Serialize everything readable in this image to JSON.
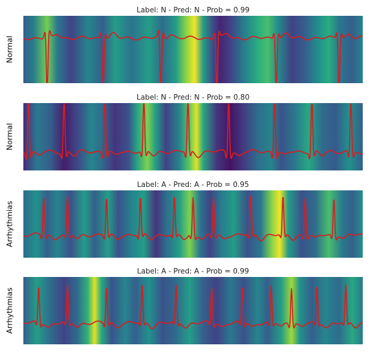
{
  "chart_data": [
    {
      "type": "heatmap",
      "title": "Label: N - Pred: N - Prob = 0.99",
      "ylabel": "Normal",
      "label": "N",
      "pred": "N",
      "prob": 0.99,
      "colormap": "viridis",
      "signal_color": "#d81e1e",
      "signal": {
        "baseline": 0.33,
        "beat_direction": "down",
        "beat_depth": 0.95,
        "beats": [
          0.07,
          0.235,
          0.405,
          0.57,
          0.745,
          0.93
        ]
      },
      "saliency": [
        {
          "x": 0.0,
          "v": 0.3
        },
        {
          "x": 0.03,
          "v": 0.42
        },
        {
          "x": 0.07,
          "v": 0.78
        },
        {
          "x": 0.1,
          "v": 0.4
        },
        {
          "x": 0.14,
          "v": 0.2
        },
        {
          "x": 0.19,
          "v": 0.45
        },
        {
          "x": 0.235,
          "v": 0.3
        },
        {
          "x": 0.27,
          "v": 0.55
        },
        {
          "x": 0.32,
          "v": 0.38
        },
        {
          "x": 0.37,
          "v": 0.55
        },
        {
          "x": 0.41,
          "v": 0.35
        },
        {
          "x": 0.45,
          "v": 0.55
        },
        {
          "x": 0.48,
          "v": 0.82
        },
        {
          "x": 0.505,
          "v": 0.98
        },
        {
          "x": 0.53,
          "v": 0.55
        },
        {
          "x": 0.56,
          "v": 0.22
        },
        {
          "x": 0.58,
          "v": 0.1
        },
        {
          "x": 0.61,
          "v": 0.2
        },
        {
          "x": 0.65,
          "v": 0.42
        },
        {
          "x": 0.69,
          "v": 0.62
        },
        {
          "x": 0.72,
          "v": 0.7
        },
        {
          "x": 0.75,
          "v": 0.48
        },
        {
          "x": 0.79,
          "v": 0.2
        },
        {
          "x": 0.83,
          "v": 0.3
        },
        {
          "x": 0.87,
          "v": 0.5
        },
        {
          "x": 0.9,
          "v": 0.62
        },
        {
          "x": 0.93,
          "v": 0.4
        },
        {
          "x": 0.97,
          "v": 0.3
        },
        {
          "x": 1.0,
          "v": 0.45
        }
      ]
    },
    {
      "type": "heatmap",
      "title": "Label: N - Pred: N - Prob = 0.80",
      "ylabel": "Normal",
      "label": "N",
      "pred": "N",
      "prob": 0.8,
      "colormap": "viridis",
      "signal_color": "#d81e1e",
      "signal": {
        "baseline": 0.72,
        "beat_direction": "up",
        "beat_depth": 0.95,
        "beats": [
          0.015,
          0.12,
          0.24,
          0.355,
          0.485,
          0.605,
          0.74,
          0.85,
          0.965
        ]
      },
      "saliency": [
        {
          "x": 0.0,
          "v": 0.12
        },
        {
          "x": 0.04,
          "v": 0.4
        },
        {
          "x": 0.08,
          "v": 0.3
        },
        {
          "x": 0.12,
          "v": 0.08
        },
        {
          "x": 0.16,
          "v": 0.22
        },
        {
          "x": 0.2,
          "v": 0.45
        },
        {
          "x": 0.23,
          "v": 0.35
        },
        {
          "x": 0.27,
          "v": 0.15
        },
        {
          "x": 0.31,
          "v": 0.25
        },
        {
          "x": 0.335,
          "v": 0.58
        },
        {
          "x": 0.365,
          "v": 0.8
        },
        {
          "x": 0.39,
          "v": 0.55
        },
        {
          "x": 0.42,
          "v": 0.2
        },
        {
          "x": 0.46,
          "v": 0.45
        },
        {
          "x": 0.49,
          "v": 0.75
        },
        {
          "x": 0.51,
          "v": 0.95
        },
        {
          "x": 0.53,
          "v": 0.6
        },
        {
          "x": 0.57,
          "v": 0.15
        },
        {
          "x": 0.61,
          "v": 0.05
        },
        {
          "x": 0.65,
          "v": 0.18
        },
        {
          "x": 0.69,
          "v": 0.35
        },
        {
          "x": 0.73,
          "v": 0.45
        },
        {
          "x": 0.76,
          "v": 0.25
        },
        {
          "x": 0.8,
          "v": 0.4
        },
        {
          "x": 0.84,
          "v": 0.6
        },
        {
          "x": 0.88,
          "v": 0.35
        },
        {
          "x": 0.92,
          "v": 0.28
        },
        {
          "x": 0.96,
          "v": 0.5
        },
        {
          "x": 1.0,
          "v": 0.3
        }
      ]
    },
    {
      "type": "heatmap",
      "title": "Label: A - Pred: A - Prob = 0.95",
      "ylabel": "Arrhythmias",
      "label": "A",
      "pred": "A",
      "prob": 0.95,
      "colormap": "viridis",
      "signal_color": "#d81e1e",
      "signal": {
        "baseline": 0.66,
        "beat_direction": "up",
        "beat_depth": 0.62,
        "beats": [
          0.06,
          0.13,
          0.245,
          0.345,
          0.445,
          0.5,
          0.56,
          0.67,
          0.765,
          0.83,
          0.915
        ]
      },
      "saliency": [
        {
          "x": 0.0,
          "v": 0.35
        },
        {
          "x": 0.04,
          "v": 0.5
        },
        {
          "x": 0.07,
          "v": 0.3
        },
        {
          "x": 0.1,
          "v": 0.45
        },
        {
          "x": 0.14,
          "v": 0.25
        },
        {
          "x": 0.18,
          "v": 0.55
        },
        {
          "x": 0.21,
          "v": 0.3
        },
        {
          "x": 0.25,
          "v": 0.55
        },
        {
          "x": 0.28,
          "v": 0.25
        },
        {
          "x": 0.32,
          "v": 0.45
        },
        {
          "x": 0.355,
          "v": 0.55
        },
        {
          "x": 0.39,
          "v": 0.15
        },
        {
          "x": 0.42,
          "v": 0.35
        },
        {
          "x": 0.46,
          "v": 0.55
        },
        {
          "x": 0.49,
          "v": 0.8
        },
        {
          "x": 0.52,
          "v": 0.4
        },
        {
          "x": 0.55,
          "v": 0.2
        },
        {
          "x": 0.58,
          "v": 0.4
        },
        {
          "x": 0.62,
          "v": 0.55
        },
        {
          "x": 0.66,
          "v": 0.25
        },
        {
          "x": 0.7,
          "v": 0.4
        },
        {
          "x": 0.73,
          "v": 0.8
        },
        {
          "x": 0.755,
          "v": 0.98
        },
        {
          "x": 0.78,
          "v": 0.55
        },
        {
          "x": 0.82,
          "v": 0.25
        },
        {
          "x": 0.86,
          "v": 0.35
        },
        {
          "x": 0.9,
          "v": 0.7
        },
        {
          "x": 0.94,
          "v": 0.4
        },
        {
          "x": 0.97,
          "v": 0.3
        },
        {
          "x": 1.0,
          "v": 0.5
        }
      ]
    },
    {
      "type": "heatmap",
      "title": "Label: A - Pred: A - Prob = 0.99",
      "ylabel": "Arrhythmias",
      "label": "A",
      "pred": "A",
      "prob": 0.99,
      "colormap": "viridis",
      "signal_color": "#d81e1e",
      "signal": {
        "baseline": 0.68,
        "beat_direction": "up",
        "beat_depth": 0.6,
        "beats": [
          0.045,
          0.13,
          0.245,
          0.35,
          0.45,
          0.555,
          0.645,
          0.73,
          0.79,
          0.865,
          0.95
        ]
      },
      "saliency": [
        {
          "x": 0.0,
          "v": 0.3
        },
        {
          "x": 0.04,
          "v": 0.55
        },
        {
          "x": 0.08,
          "v": 0.35
        },
        {
          "x": 0.12,
          "v": 0.2
        },
        {
          "x": 0.16,
          "v": 0.35
        },
        {
          "x": 0.19,
          "v": 0.65
        },
        {
          "x": 0.21,
          "v": 0.95
        },
        {
          "x": 0.23,
          "v": 0.6
        },
        {
          "x": 0.26,
          "v": 0.25
        },
        {
          "x": 0.3,
          "v": 0.45
        },
        {
          "x": 0.33,
          "v": 0.3
        },
        {
          "x": 0.37,
          "v": 0.5
        },
        {
          "x": 0.41,
          "v": 0.25
        },
        {
          "x": 0.45,
          "v": 0.35
        },
        {
          "x": 0.49,
          "v": 0.55
        },
        {
          "x": 0.53,
          "v": 0.3
        },
        {
          "x": 0.57,
          "v": 0.2
        },
        {
          "x": 0.61,
          "v": 0.4
        },
        {
          "x": 0.65,
          "v": 0.25
        },
        {
          "x": 0.69,
          "v": 0.45
        },
        {
          "x": 0.72,
          "v": 0.3
        },
        {
          "x": 0.76,
          "v": 0.55
        },
        {
          "x": 0.79,
          "v": 0.85
        },
        {
          "x": 0.815,
          "v": 0.5
        },
        {
          "x": 0.85,
          "v": 0.3
        },
        {
          "x": 0.89,
          "v": 0.45
        },
        {
          "x": 0.93,
          "v": 0.35
        },
        {
          "x": 0.97,
          "v": 0.6
        },
        {
          "x": 1.0,
          "v": 0.4
        }
      ]
    }
  ]
}
